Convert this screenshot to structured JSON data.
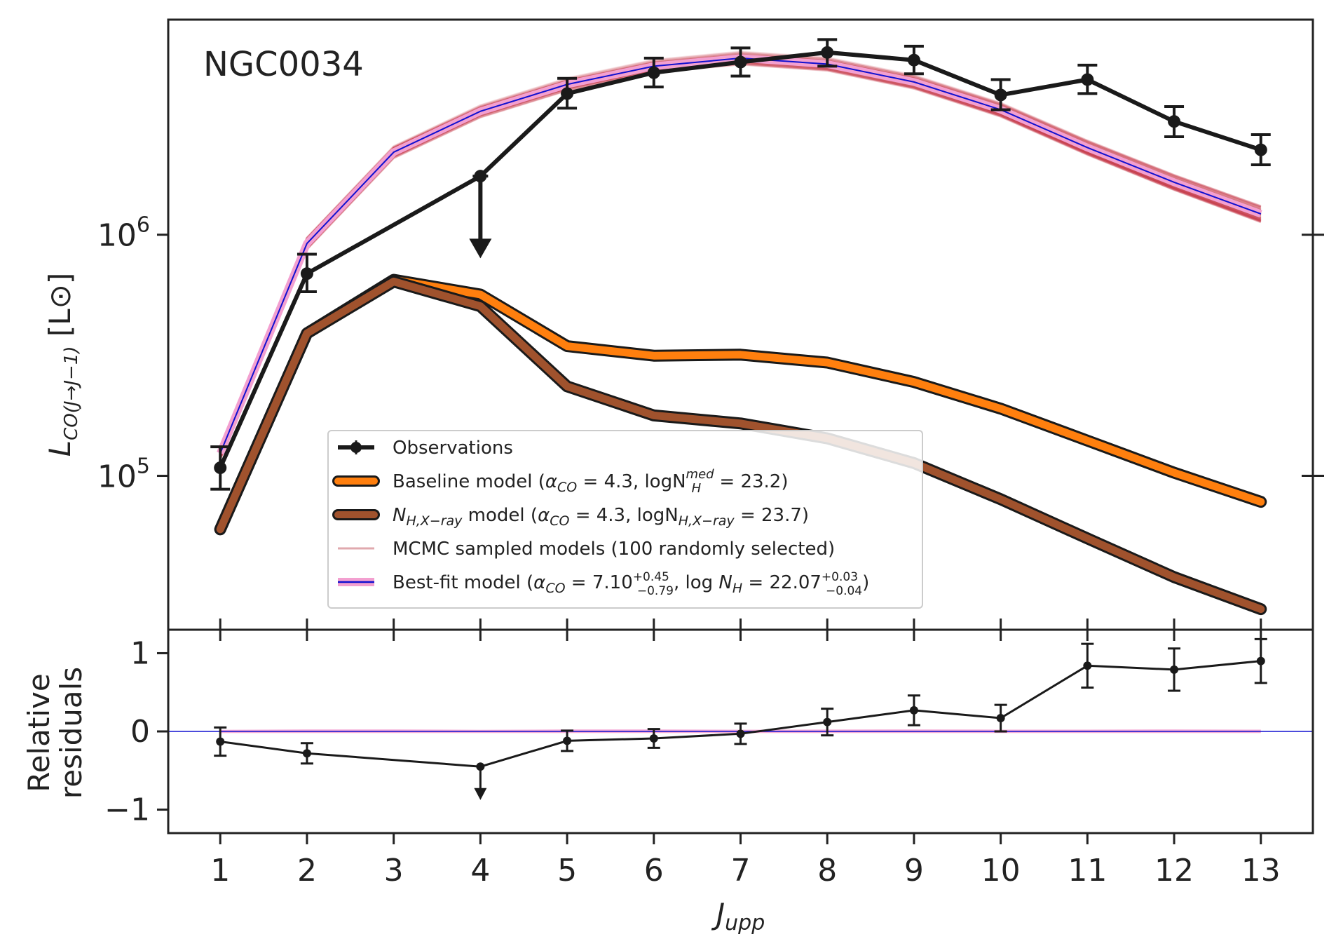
{
  "chart_data": [
    {
      "type": "line",
      "panel": "main",
      "title": "NGC0034",
      "xlabel": "",
      "ylabel_main": "L",
      "ylabel_sub": "CO(J→J−1)",
      "ylabel_unit": "[L⊙]",
      "yscale": "log",
      "xlim": [
        0.4,
        13.6
      ],
      "ylim": [
        23000,
        7800000
      ],
      "x": [
        1,
        2,
        3,
        4,
        5,
        6,
        7,
        8,
        9,
        10,
        11,
        12,
        13
      ],
      "y_tick_values": [
        100000,
        1000000
      ],
      "y_tick_labels": [
        {
          "base": "10",
          "exp": "5"
        },
        {
          "base": "10",
          "exp": "6"
        }
      ],
      "legend_position": "lower center",
      "legend": [
        {
          "key": "obs",
          "text": "Observations"
        },
        {
          "key": "baseline",
          "text": "Baseline model (α_CO = 4.3, logN_H^med = 23.2)"
        },
        {
          "key": "xray",
          "text": "N_H,X−ray model (α_CO = 4.3, logN_H,X−ray = 23.7)"
        },
        {
          "key": "mcmc",
          "text": "MCMC sampled models (100 randomly selected)"
        },
        {
          "key": "best",
          "text": "Best-fit model (α_CO = 7.10^{+0.45}_{−0.79}, log N_H = 22.07^{+0.03}_{−0.04})"
        }
      ],
      "series": [
        {
          "name": "Observations",
          "values": [
            108000,
            690000,
            null,
            1750000,
            3850000,
            4700000,
            5200000,
            5700000,
            5300000,
            3800000,
            4400000,
            2950000,
            2250000
          ],
          "err_low": [
            20000,
            110000,
            null,
            null,
            500000,
            600000,
            650000,
            700000,
            650000,
            500000,
            550000,
            400000,
            300000
          ],
          "err_high": [
            24000,
            140000,
            null,
            null,
            600000,
            700000,
            750000,
            750000,
            750000,
            600000,
            650000,
            450000,
            350000
          ],
          "upper_limit_index": 3,
          "upper_limit_arrow_to": 820000,
          "color": "#1a1a1a"
        },
        {
          "name": "Baseline model (α_CO = 4.3, logN_H^med = 23.2)",
          "values": [
            60000,
            390000,
            650000,
            565000,
            345000,
            315000,
            318000,
            295000,
            245000,
            190000,
            140000,
            103000,
            78000
          ],
          "color": "#ff7f0e"
        },
        {
          "name": "N_H,X−ray model (α_CO = 4.3, logN_H,X−ray = 23.7)",
          "values": [
            60000,
            390000,
            640000,
            505000,
            235000,
            178000,
            165000,
            143000,
            113000,
            80000,
            55000,
            38000,
            28000
          ],
          "color": "#a0522d"
        },
        {
          "name": "Best-fit model",
          "values": [
            124000,
            920000,
            2200000,
            3250000,
            4200000,
            5000000,
            5400000,
            5100000,
            4300000,
            3300000,
            2300000,
            1650000,
            1220000
          ],
          "color": "#1010d0",
          "band_color": "#f3a0d0",
          "mcmc_color": "#c23043"
        }
      ]
    },
    {
      "type": "line",
      "panel": "residuals",
      "xlabel": "J_upp",
      "ylabel": "Relative residuals",
      "ylabel_lines": [
        "Relative",
        "residuals"
      ],
      "xlim": [
        0.4,
        13.6
      ],
      "ylim": [
        -1.3,
        1.3
      ],
      "x": [
        1,
        2,
        3,
        4,
        5,
        6,
        7,
        8,
        9,
        10,
        11,
        12,
        13
      ],
      "x_tick_labels": [
        "1",
        "2",
        "3",
        "4",
        "5",
        "6",
        "7",
        "8",
        "9",
        "10",
        "11",
        "12",
        "13"
      ],
      "y_ticks": [
        -1,
        0,
        1
      ],
      "y_tick_labels": [
        "−1",
        "0",
        "1"
      ],
      "series": [
        {
          "name": "Observations",
          "values": [
            -0.13,
            -0.28,
            null,
            -0.45,
            -0.12,
            -0.09,
            -0.03,
            0.12,
            0.27,
            0.17,
            0.84,
            0.79,
            0.9
          ],
          "err": [
            0.18,
            0.13,
            null,
            null,
            0.13,
            0.12,
            0.13,
            0.17,
            0.19,
            0.17,
            0.28,
            0.27,
            0.28
          ],
          "upper_limit_index": 3,
          "upper_limit_arrow_to": -0.85,
          "color": "#1a1a1a"
        }
      ],
      "zero_line_color": "#1010d0",
      "band_color": "#f3a0d0"
    }
  ]
}
